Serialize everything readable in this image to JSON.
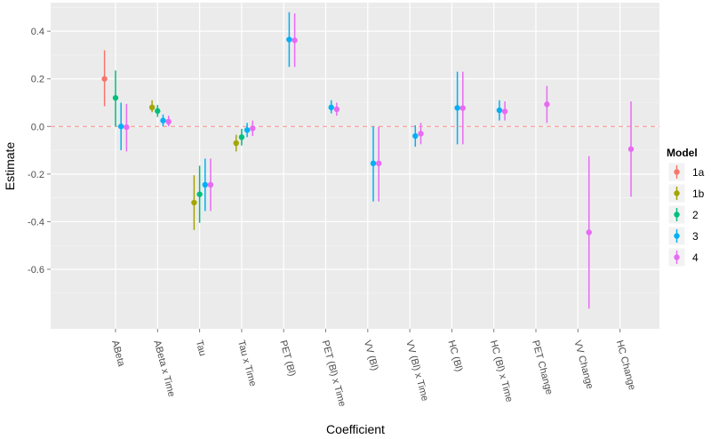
{
  "chart_data": {
    "type": "pointrange",
    "title": "",
    "xlabel": "Coefficient",
    "ylabel": "Estimate",
    "ylim": [
      -0.85,
      0.52
    ],
    "yticks": [
      0.4,
      0.2,
      0.0,
      -0.2,
      -0.4,
      -0.6
    ],
    "ytick_labels": [
      "0.4",
      "0.2",
      "0.0",
      "-0.2",
      "-0.4",
      "-0.6"
    ],
    "reference_line": 0.0,
    "grid": true,
    "legend_position": "right",
    "categories": [
      "ABeta",
      "ABeta x Time",
      "Tau",
      "Tau x Time",
      "PET (Bl)",
      "PET (Bl) x Time",
      "VV (Bl)",
      "VV (Bl) x Time",
      "HC (Bl)",
      "HC (Bl) x Time",
      "PET Change",
      "VV Change",
      "HC Change"
    ],
    "legend_title": "Model",
    "series": [
      {
        "name": "1a",
        "color": "#F8766D",
        "points": [
          {
            "category": "ABeta",
            "estimate": 0.2,
            "lower": 0.085,
            "upper": 0.32
          }
        ]
      },
      {
        "name": "1b",
        "color": "#A3A500",
        "points": [
          {
            "category": "ABeta x Time",
            "estimate": 0.08,
            "lower": 0.06,
            "upper": 0.11
          },
          {
            "category": "Tau",
            "estimate": -0.32,
            "lower": -0.435,
            "upper": -0.205
          },
          {
            "category": "Tau x Time",
            "estimate": -0.07,
            "lower": -0.105,
            "upper": -0.035
          }
        ]
      },
      {
        "name": "2",
        "color": "#00BF7D",
        "points": [
          {
            "category": "ABeta",
            "estimate": 0.12,
            "lower": 0.0,
            "upper": 0.235
          },
          {
            "category": "ABeta x Time",
            "estimate": 0.065,
            "lower": 0.04,
            "upper": 0.09
          },
          {
            "category": "Tau",
            "estimate": -0.285,
            "lower": -0.405,
            "upper": -0.165
          },
          {
            "category": "Tau x Time",
            "estimate": -0.045,
            "lower": -0.08,
            "upper": -0.01
          }
        ]
      },
      {
        "name": "3",
        "color": "#00B0F6",
        "points": [
          {
            "category": "ABeta",
            "estimate": 0.0,
            "lower": -0.1,
            "upper": 0.1
          },
          {
            "category": "ABeta x Time",
            "estimate": 0.025,
            "lower": 0.0,
            "upper": 0.05
          },
          {
            "category": "Tau",
            "estimate": -0.245,
            "lower": -0.355,
            "upper": -0.135
          },
          {
            "category": "Tau x Time",
            "estimate": -0.015,
            "lower": -0.045,
            "upper": 0.015
          },
          {
            "category": "PET (Bl)",
            "estimate": 0.365,
            "lower": 0.25,
            "upper": 0.48
          },
          {
            "category": "PET (Bl) x Time",
            "estimate": 0.08,
            "lower": 0.055,
            "upper": 0.11
          },
          {
            "category": "VV (Bl)",
            "estimate": -0.155,
            "lower": -0.315,
            "upper": 0.0
          },
          {
            "category": "VV (Bl) x Time",
            "estimate": -0.04,
            "lower": -0.085,
            "upper": 0.005
          },
          {
            "category": "HC (Bl)",
            "estimate": 0.078,
            "lower": -0.075,
            "upper": 0.23
          },
          {
            "category": "HC (Bl) x Time",
            "estimate": 0.068,
            "lower": 0.025,
            "upper": 0.11
          }
        ]
      },
      {
        "name": "4",
        "color": "#E76BF3",
        "points": [
          {
            "category": "ABeta",
            "estimate": -0.003,
            "lower": -0.105,
            "upper": 0.095
          },
          {
            "category": "ABeta x Time",
            "estimate": 0.02,
            "lower": 0.0,
            "upper": 0.045
          },
          {
            "category": "Tau",
            "estimate": -0.245,
            "lower": -0.355,
            "upper": -0.135
          },
          {
            "category": "Tau x Time",
            "estimate": -0.008,
            "lower": -0.04,
            "upper": 0.025
          },
          {
            "category": "PET (Bl)",
            "estimate": 0.362,
            "lower": 0.25,
            "upper": 0.475
          },
          {
            "category": "PET (Bl) x Time",
            "estimate": 0.072,
            "lower": 0.045,
            "upper": 0.1
          },
          {
            "category": "VV (Bl)",
            "estimate": -0.155,
            "lower": -0.315,
            "upper": 0.0
          },
          {
            "category": "VV (Bl) x Time",
            "estimate": -0.03,
            "lower": -0.075,
            "upper": 0.015
          },
          {
            "category": "HC (Bl)",
            "estimate": 0.077,
            "lower": -0.075,
            "upper": 0.23
          },
          {
            "category": "HC (Bl) x Time",
            "estimate": 0.063,
            "lower": 0.025,
            "upper": 0.105
          },
          {
            "category": "PET Change",
            "estimate": 0.093,
            "lower": 0.015,
            "upper": 0.17
          },
          {
            "category": "VV Change",
            "estimate": -0.445,
            "lower": -0.765,
            "upper": -0.125
          },
          {
            "category": "HC Change",
            "estimate": -0.095,
            "lower": -0.295,
            "upper": 0.105
          }
        ]
      }
    ]
  }
}
